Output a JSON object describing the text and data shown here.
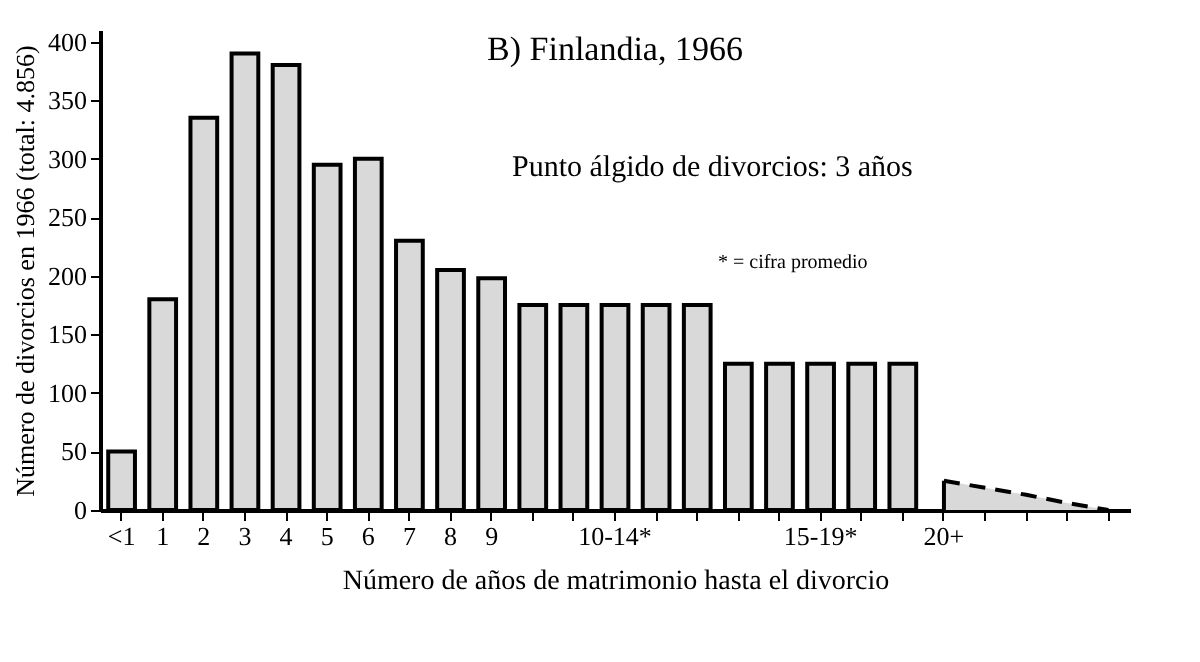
{
  "chart_data": {
    "type": "bar",
    "title": "B) Finlandia, 1966",
    "xlabel": "Número de años de matrimonio hasta el divorcio",
    "ylabel": "Número de divorcios en 1966 (total: 4.856)",
    "annotations": [
      "Punto álgido de divorcios: 3 años",
      "* = cifra promedio"
    ],
    "categories": [
      "<1",
      "1",
      "2",
      "3",
      "4",
      "5",
      "6",
      "7",
      "8",
      "9",
      null,
      null,
      "10-14*",
      null,
      null,
      null,
      null,
      "15-19*",
      null,
      null,
      "20+",
      null,
      null,
      null,
      null
    ],
    "series": [
      {
        "color": "#d9d9d9",
        "values": [
          50,
          180,
          335,
          390,
          380,
          295,
          300,
          230,
          205,
          198,
          175,
          175,
          175,
          175,
          175,
          125,
          125,
          125,
          125,
          125,
          null,
          null,
          null,
          null,
          null
        ]
      },
      {
        "type": "area",
        "color": "#d9d9d9",
        "line_style": "dashed",
        "values": [
          null,
          null,
          null,
          null,
          null,
          null,
          null,
          null,
          null,
          null,
          null,
          null,
          null,
          null,
          null,
          null,
          null,
          null,
          null,
          null,
          25,
          19,
          13,
          6,
          0
        ]
      }
    ],
    "ylim": [
      0,
      410
    ],
    "yticks": [
      0,
      50,
      100,
      150,
      200,
      250,
      300,
      350,
      400
    ]
  }
}
